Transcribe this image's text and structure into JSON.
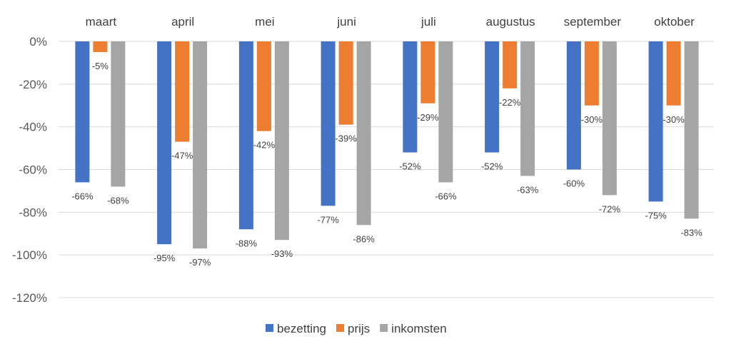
{
  "chart_data": {
    "type": "bar",
    "title": "",
    "xlabel": "",
    "ylabel": "",
    "categories": [
      "maart",
      "april",
      "mei",
      "juni",
      "juli",
      "augustus",
      "september",
      "oktober"
    ],
    "series": [
      {
        "name": "bezetting",
        "color": "#4472C4",
        "values": [
          -66,
          -95,
          -88,
          -77,
          -52,
          -52,
          -60,
          -75
        ]
      },
      {
        "name": "prijs",
        "color": "#ED7D31",
        "values": [
          -5,
          -47,
          -42,
          -39,
          -29,
          -22,
          -30,
          -30
        ]
      },
      {
        "name": "inkomsten",
        "color": "#A5A5A5",
        "values": [
          -68,
          -97,
          -93,
          -86,
          -66,
          -63,
          -72,
          -83
        ]
      }
    ],
    "ylim": [
      -120,
      0
    ],
    "yticks": [
      0,
      -20,
      -40,
      -60,
      -80,
      -100,
      -120
    ],
    "ytick_labels": [
      "0%",
      "-20%",
      "-40%",
      "-60%",
      "-80%",
      "-100%",
      "-120%"
    ],
    "value_suffix": "%",
    "category_axis_position": "top",
    "grid": true,
    "legend": "bottom"
  }
}
